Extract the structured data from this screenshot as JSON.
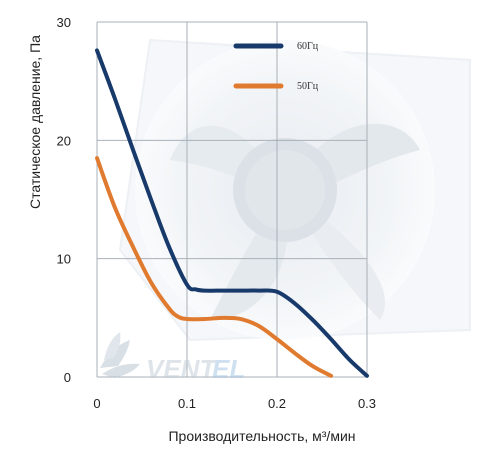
{
  "chart_data": {
    "type": "line",
    "xlabel": "Производительность, м³/мин",
    "ylabel": "Статическое давление, Па",
    "xlim": [
      0,
      0.3
    ],
    "ylim": [
      0,
      30
    ],
    "x_ticks": [
      "0",
      "0.1",
      "0.2",
      "0.3"
    ],
    "y_ticks": [
      "0",
      "10",
      "20",
      "30"
    ],
    "grid": true,
    "legend_position": "top-right",
    "series": [
      {
        "name": "60Гц",
        "color": "#173a6b",
        "x": [
          0,
          0.02,
          0.04,
          0.06,
          0.08,
          0.1,
          0.11,
          0.12,
          0.14,
          0.16,
          0.18,
          0.2,
          0.22,
          0.24,
          0.26,
          0.28,
          0.3
        ],
        "y": [
          27.6,
          23.5,
          19.2,
          15.0,
          11.0,
          7.8,
          7.4,
          7.3,
          7.3,
          7.3,
          7.3,
          7.2,
          6.2,
          4.8,
          3.2,
          1.5,
          0.1
        ]
      },
      {
        "name": "50Гц",
        "color": "#e07a2e",
        "x": [
          0,
          0.02,
          0.04,
          0.06,
          0.08,
          0.09,
          0.1,
          0.12,
          0.14,
          0.16,
          0.18,
          0.2,
          0.22,
          0.24,
          0.26
        ],
        "y": [
          18.5,
          14.3,
          11.0,
          8.0,
          5.8,
          5.1,
          4.9,
          4.9,
          5.0,
          4.9,
          4.3,
          3.2,
          2.0,
          0.9,
          0.1
        ]
      }
    ]
  },
  "watermark": {
    "text_main": "VENT",
    "text_accent": "EL"
  }
}
